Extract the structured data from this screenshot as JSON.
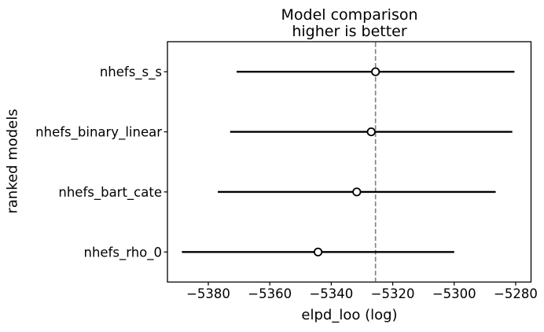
{
  "title": {
    "line1": "Model comparison",
    "line2": "higher is better"
  },
  "axis_labels": {
    "x": "elpd_loo (log)",
    "y": "ranked models"
  },
  "chart_data": {
    "type": "scatter",
    "subtype": "forest-errorbar-model-comparison",
    "title": "Model comparison\nhigher is better",
    "xlabel": "elpd_loo (log)",
    "ylabel": "ranked models",
    "categories": [
      "nhefs_s_s",
      "nhefs_binary_linear",
      "nhefs_bart_cate",
      "nhefs_rho_0"
    ],
    "series": [
      {
        "name": "nhefs_s_s",
        "elpd_loo": -5325.6,
        "ci_lower": -5370.8,
        "ci_upper": -5280.4
      },
      {
        "name": "nhefs_binary_linear",
        "elpd_loo": -5327.0,
        "ci_lower": -5372.9,
        "ci_upper": -5281.1
      },
      {
        "name": "nhefs_bart_cate",
        "elpd_loo": -5331.7,
        "ci_lower": -5376.9,
        "ci_upper": -5286.5
      },
      {
        "name": "nhefs_rho_0",
        "elpd_loo": -5344.3,
        "ci_lower": -5388.6,
        "ci_upper": -5300.0
      }
    ],
    "reference_line_x": -5325.6,
    "x_ticks": [
      -5380,
      -5360,
      -5340,
      -5320,
      -5300,
      -5280
    ],
    "x_tick_labels": [
      "−5380",
      "−5360",
      "−5340",
      "−5320",
      "−5300",
      "−5280"
    ],
    "xlim": [
      -5393.3,
      -5275.0
    ],
    "grid": false,
    "legend": false,
    "marker_style": "open-circle",
    "colors": {
      "errorbar": "#000000",
      "marker_fill": "#ffffff",
      "marker_edge": "#000000",
      "reference_line": "#808080",
      "spine": "#000000",
      "text": "#000000"
    }
  }
}
